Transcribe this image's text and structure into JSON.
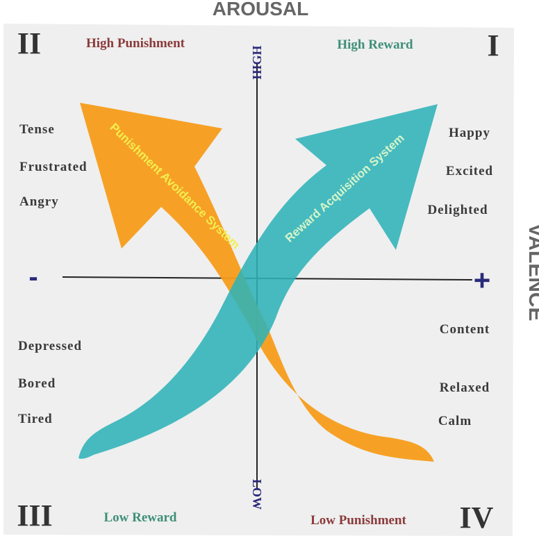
{
  "axes": {
    "vertical": "AROUSAL",
    "horizontal": "VALENCE",
    "high": "HIGH",
    "low": "LOW",
    "negative": "-",
    "positive": "+"
  },
  "systems": {
    "punishment": "Punishment Avoidance System",
    "reward": "Reward Acquisition System"
  },
  "quadrants": [
    {
      "numeral": "I",
      "label": "High Reward",
      "emotions": [
        "Happy",
        "Excited",
        "Delighted"
      ]
    },
    {
      "numeral": "II",
      "label": "High Punishment",
      "emotions": [
        "Tense",
        "Frustrated",
        "Angry"
      ]
    },
    {
      "numeral": "III",
      "label": "Low Reward",
      "emotions": [
        "Depressed",
        "Bored",
        "Tired"
      ]
    },
    {
      "numeral": "IV",
      "label": "Low Punishment",
      "emotions": [
        "Content",
        "Relaxed",
        "Calm"
      ]
    }
  ]
}
